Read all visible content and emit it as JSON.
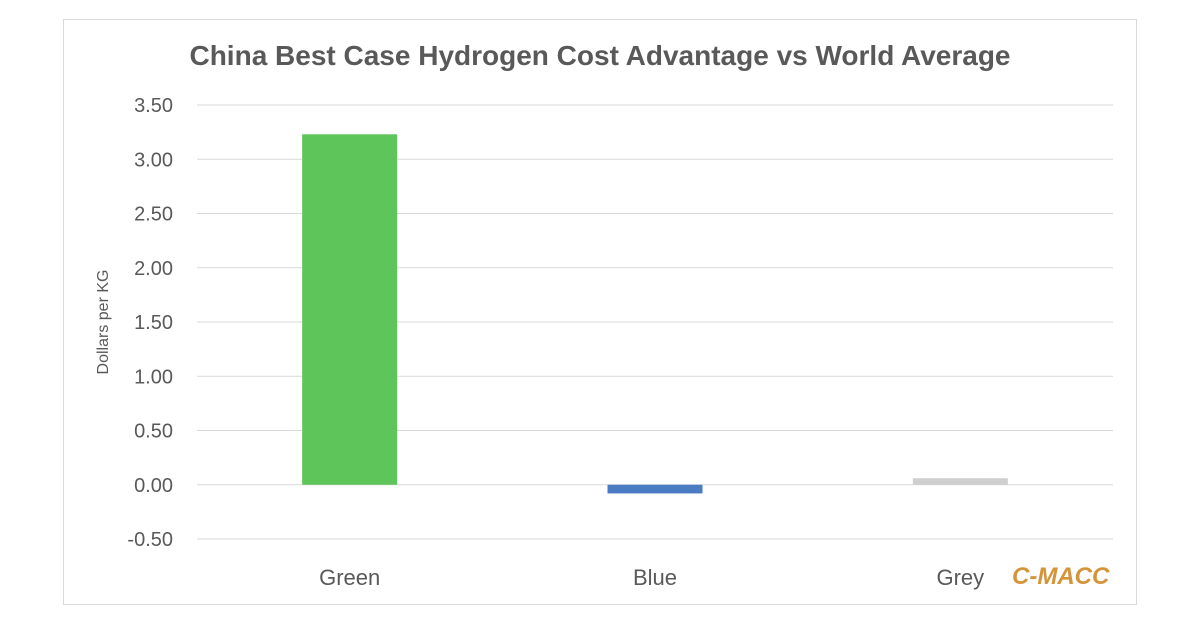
{
  "chart_data": {
    "type": "bar",
    "title": "China Best Case Hydrogen Cost Advantage vs World Average",
    "xlabel": "",
    "ylabel": "Dollars per KG",
    "categories": [
      "Green",
      "Blue",
      "Grey"
    ],
    "values": [
      3.23,
      -0.08,
      0.06
    ],
    "bar_colors": [
      "#5ec55a",
      "#4a7cc4",
      "#cfcfcf"
    ],
    "ylim": [
      -0.5,
      3.5
    ],
    "ytick_values": [
      -0.5,
      0,
      0.5,
      1,
      1.5,
      2,
      2.5,
      3,
      3.5
    ],
    "ytick_labels": [
      "-0.50",
      "0.00",
      "0.50",
      "1.00",
      "1.50",
      "2.00",
      "2.50",
      "3.00",
      "3.50"
    ],
    "grid": true,
    "legend": "none"
  },
  "watermark": {
    "text": "C-MACC",
    "color": "#d4953a"
  },
  "colors": {
    "grid": "#d9d9d9",
    "text": "#595959",
    "title": "#595959"
  }
}
